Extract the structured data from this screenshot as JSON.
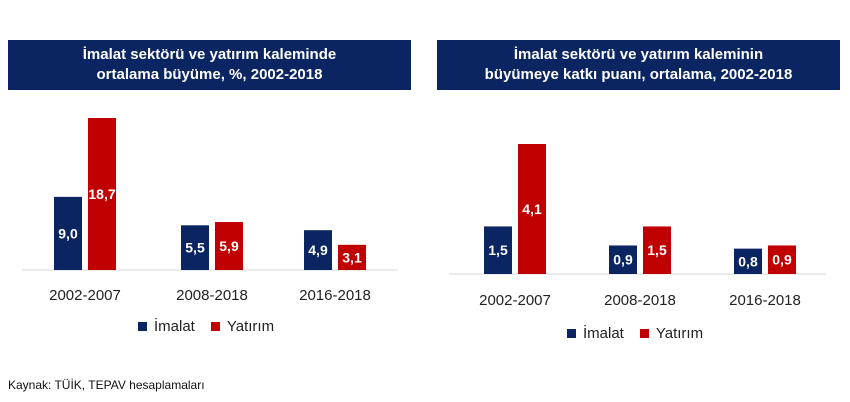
{
  "colors": {
    "imalat": "#0a2561",
    "yatirim": "#c00000",
    "title_bg": "#0a2561"
  },
  "source": "Kaynak: TÜİK, TEPAV hesaplamaları",
  "chart_data": [
    {
      "type": "bar",
      "title_line1": "İmalat sektörü ve yatırım kaleminde",
      "title_line2": "ortalama büyüme, %, 2002-2018",
      "categories": [
        "2002-2007",
        "2008-2018",
        "2016-2018"
      ],
      "series": [
        {
          "name": "İmalat",
          "values": [
            9.0,
            5.5,
            4.9
          ],
          "labels": [
            "9,0",
            "5,5",
            "4,9"
          ]
        },
        {
          "name": "Yatırım",
          "values": [
            18.7,
            5.9,
            3.1
          ],
          "labels": [
            "18,7",
            "5,9",
            "3,1"
          ]
        }
      ],
      "ylim": [
        0,
        18.7
      ],
      "legend": "bottom"
    },
    {
      "type": "bar",
      "title_line1": "İmalat sektörü ve yatırım kaleminin",
      "title_line2": "büyümeye katkı puanı, ortalama, 2002-2018",
      "categories": [
        "2002-2007",
        "2008-2018",
        "2016-2018"
      ],
      "series": [
        {
          "name": "İmalat",
          "values": [
            1.5,
            0.9,
            0.8
          ],
          "labels": [
            "1,5",
            "0,9",
            "0,8"
          ]
        },
        {
          "name": "Yatırım",
          "values": [
            4.1,
            1.5,
            0.9
          ],
          "labels": [
            "4,1",
            "1,5",
            "0,9"
          ]
        }
      ],
      "ylim": [
        0,
        4.1
      ],
      "legend": "bottom"
    }
  ]
}
